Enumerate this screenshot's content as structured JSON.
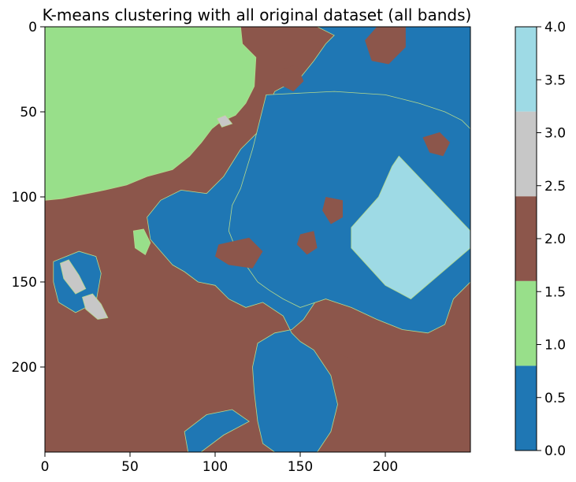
{
  "chart_data": {
    "type": "heatmap",
    "title": "K-means clustering with all original dataset (all bands)",
    "x_ticks": [
      0,
      50,
      100,
      150,
      200
    ],
    "y_ticks": [
      0,
      50,
      100,
      150,
      200
    ],
    "xlim": [
      0,
      250
    ],
    "ylim": [
      250,
      0
    ],
    "colorbar": {
      "range": [
        0.0,
        4.0
      ],
      "ticks": [
        "0.0",
        "0.5",
        "1.0",
        "1.5",
        "2.0",
        "2.5",
        "3.0",
        "3.5",
        "4.0"
      ],
      "classes": [
        {
          "class": 0,
          "color": "#1f77b4"
        },
        {
          "class": 1,
          "color": "#98df8a"
        },
        {
          "class": 2,
          "color": "#8c564b"
        },
        {
          "class": 3,
          "color": "#c7c7c7"
        },
        {
          "class": 4,
          "color": "#9edae5"
        }
      ]
    },
    "regions": [
      {
        "class": 2,
        "polygon": [
          [
            0,
            0
          ],
          [
            250,
            0
          ],
          [
            250,
            250
          ],
          [
            0,
            250
          ]
        ]
      },
      {
        "class": 1,
        "polygon": [
          [
            0,
            0
          ],
          [
            115,
            0
          ],
          [
            116,
            10
          ],
          [
            124,
            18
          ],
          [
            123,
            35
          ],
          [
            118,
            45
          ],
          [
            112,
            52
          ],
          [
            103,
            56
          ],
          [
            98,
            60
          ],
          [
            92,
            68
          ],
          [
            85,
            76
          ],
          [
            75,
            84
          ],
          [
            60,
            88
          ],
          [
            48,
            93
          ],
          [
            35,
            96
          ],
          [
            20,
            99
          ],
          [
            10,
            101
          ],
          [
            0,
            102
          ]
        ]
      },
      {
        "class": 0,
        "polygon": [
          [
            125,
            0
          ],
          [
            250,
            0
          ],
          [
            250,
            65
          ],
          [
            240,
            75
          ],
          [
            232,
            68
          ],
          [
            222,
            72
          ],
          [
            205,
            70
          ],
          [
            195,
            85
          ],
          [
            185,
            95
          ],
          [
            175,
            108
          ],
          [
            170,
            125
          ],
          [
            175,
            135
          ],
          [
            168,
            142
          ],
          [
            160,
            160
          ],
          [
            152,
            172
          ],
          [
            145,
            178
          ],
          [
            135,
            180
          ],
          [
            125,
            186
          ],
          [
            122,
            200
          ],
          [
            123,
            215
          ],
          [
            125,
            232
          ],
          [
            128,
            245
          ],
          [
            135,
            250
          ],
          [
            160,
            250
          ],
          [
            168,
            238
          ],
          [
            172,
            222
          ],
          [
            168,
            205
          ],
          [
            158,
            190
          ],
          [
            150,
            185
          ],
          [
            145,
            180
          ],
          [
            140,
            170
          ],
          [
            128,
            162
          ],
          [
            118,
            165
          ],
          [
            108,
            160
          ],
          [
            100,
            152
          ],
          [
            90,
            150
          ],
          [
            82,
            144
          ],
          [
            75,
            140
          ],
          [
            68,
            132
          ],
          [
            62,
            125
          ],
          [
            60,
            112
          ],
          [
            68,
            102
          ],
          [
            80,
            96
          ],
          [
            95,
            98
          ],
          [
            105,
            88
          ],
          [
            115,
            72
          ],
          [
            125,
            62
          ],
          [
            130,
            50
          ],
          [
            135,
            38
          ],
          [
            150,
            30
          ],
          [
            158,
            20
          ],
          [
            165,
            10
          ],
          [
            170,
            5
          ],
          [
            160,
            0
          ]
        ]
      },
      {
        "class": 0,
        "polygon": [
          [
            130,
            40
          ],
          [
            170,
            38
          ],
          [
            200,
            40
          ],
          [
            220,
            45
          ],
          [
            235,
            50
          ],
          [
            245,
            55
          ],
          [
            250,
            60
          ],
          [
            250,
            150
          ],
          [
            240,
            160
          ],
          [
            235,
            175
          ],
          [
            225,
            180
          ],
          [
            210,
            178
          ],
          [
            195,
            172
          ],
          [
            180,
            165
          ],
          [
            165,
            160
          ],
          [
            150,
            165
          ],
          [
            140,
            160
          ],
          [
            132,
            155
          ],
          [
            125,
            150
          ],
          [
            118,
            140
          ],
          [
            112,
            130
          ],
          [
            108,
            120
          ],
          [
            110,
            105
          ],
          [
            115,
            95
          ],
          [
            118,
            85
          ],
          [
            122,
            72
          ],
          [
            125,
            60
          ]
        ]
      },
      {
        "class": 0,
        "polygon": [
          [
            5,
            138
          ],
          [
            20,
            132
          ],
          [
            30,
            135
          ],
          [
            33,
            145
          ],
          [
            30,
            162
          ],
          [
            18,
            168
          ],
          [
            8,
            162
          ],
          [
            5,
            150
          ]
        ]
      },
      {
        "class": 0,
        "polygon": [
          [
            85,
            255
          ],
          [
            105,
            240
          ],
          [
            120,
            232
          ],
          [
            110,
            225
          ],
          [
            95,
            228
          ],
          [
            82,
            238
          ]
        ]
      },
      {
        "class": 0,
        "polygon": [
          [
            200,
            0
          ],
          [
            208,
            0
          ],
          [
            210,
            8
          ],
          [
            205,
            12
          ],
          [
            198,
            8
          ]
        ]
      },
      {
        "class": 2,
        "polygon": [
          [
            195,
            0
          ],
          [
            212,
            0
          ],
          [
            212,
            12
          ],
          [
            202,
            22
          ],
          [
            192,
            20
          ],
          [
            188,
            8
          ]
        ]
      },
      {
        "class": 2,
        "polygon": [
          [
            140,
            25
          ],
          [
            148,
            22
          ],
          [
            152,
            32
          ],
          [
            146,
            38
          ],
          [
            138,
            34
          ]
        ]
      },
      {
        "class": 2,
        "polygon": [
          [
            165,
            100
          ],
          [
            175,
            102
          ],
          [
            175,
            112
          ],
          [
            168,
            116
          ],
          [
            163,
            108
          ]
        ]
      },
      {
        "class": 2,
        "polygon": [
          [
            150,
            122
          ],
          [
            158,
            120
          ],
          [
            160,
            130
          ],
          [
            154,
            134
          ],
          [
            148,
            128
          ]
        ]
      },
      {
        "class": 2,
        "polygon": [
          [
            102,
            128
          ],
          [
            120,
            124
          ],
          [
            128,
            132
          ],
          [
            122,
            142
          ],
          [
            108,
            140
          ],
          [
            100,
            135
          ]
        ]
      },
      {
        "class": 2,
        "polygon": [
          [
            222,
            65
          ],
          [
            232,
            62
          ],
          [
            238,
            68
          ],
          [
            234,
            76
          ],
          [
            226,
            74
          ]
        ]
      },
      {
        "class": 2,
        "polygon": [
          [
            172,
            182
          ],
          [
            185,
            178
          ],
          [
            190,
            188
          ],
          [
            182,
            196
          ],
          [
            172,
            192
          ]
        ]
      },
      {
        "class": 4,
        "polygon": [
          [
            208,
            76
          ],
          [
            250,
            120
          ],
          [
            250,
            130
          ],
          [
            215,
            160
          ],
          [
            200,
            152
          ],
          [
            180,
            130
          ],
          [
            180,
            118
          ],
          [
            196,
            100
          ],
          [
            204,
            82
          ]
        ]
      },
      {
        "class": 3,
        "polygon": [
          [
            9,
            139
          ],
          [
            14,
            137
          ],
          [
            20,
            146
          ],
          [
            24,
            154
          ],
          [
            18,
            157
          ],
          [
            11,
            148
          ]
        ]
      },
      {
        "class": 3,
        "polygon": [
          [
            22,
            159
          ],
          [
            28,
            157
          ],
          [
            33,
            163
          ],
          [
            37,
            171
          ],
          [
            31,
            172
          ],
          [
            24,
            166
          ]
        ]
      },
      {
        "class": 3,
        "polygon": [
          [
            101,
            54
          ],
          [
            106,
            52
          ],
          [
            110,
            57
          ],
          [
            104,
            59
          ]
        ]
      },
      {
        "class": 1,
        "polygon": [
          [
            52,
            120
          ],
          [
            58,
            119
          ],
          [
            62,
            127
          ],
          [
            59,
            134
          ],
          [
            53,
            130
          ]
        ]
      }
    ]
  }
}
